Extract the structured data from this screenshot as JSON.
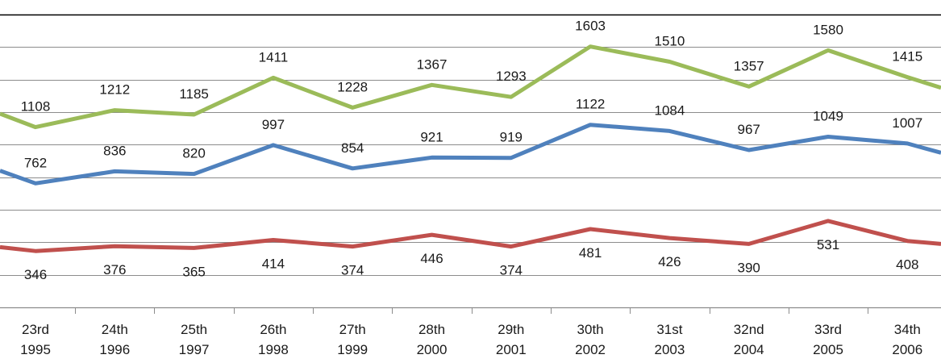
{
  "chart_data": {
    "type": "line",
    "title": "",
    "xlabel": "",
    "ylabel": "",
    "ylim": [
      0,
      1800
    ],
    "grid": true,
    "categories": [
      [
        "23rd",
        "1995"
      ],
      [
        "24th",
        "1996"
      ],
      [
        "25th",
        "1997"
      ],
      [
        "26th",
        "1998"
      ],
      [
        "27th",
        "1999"
      ],
      [
        "28th",
        "2000"
      ],
      [
        "29th",
        "2001"
      ],
      [
        "30th",
        "2002"
      ],
      [
        "31st",
        "2003"
      ],
      [
        "32nd",
        "2004"
      ],
      [
        "33rd",
        "2005"
      ],
      [
        "34th",
        "2006"
      ]
    ],
    "series": [
      {
        "color": "#9bbb59",
        "values": [
          1108,
          1212,
          1185,
          1411,
          1228,
          1367,
          1293,
          1603,
          1510,
          1357,
          1580,
          1415
        ],
        "label_position": "above",
        "edge_left": 1190,
        "edge_right": 1350
      },
      {
        "color": "#4f81bd",
        "values": [
          762,
          836,
          820,
          997,
          854,
          921,
          919,
          1122,
          1084,
          967,
          1049,
          1007
        ],
        "label_position": "above",
        "edge_left": 840,
        "edge_right": 950
      },
      {
        "color": "#c0504d",
        "values": [
          346,
          376,
          365,
          414,
          374,
          446,
          374,
          481,
          426,
          390,
          531,
          408
        ],
        "label_position": "below",
        "edge_left": 370,
        "edge_right": 390
      }
    ]
  }
}
